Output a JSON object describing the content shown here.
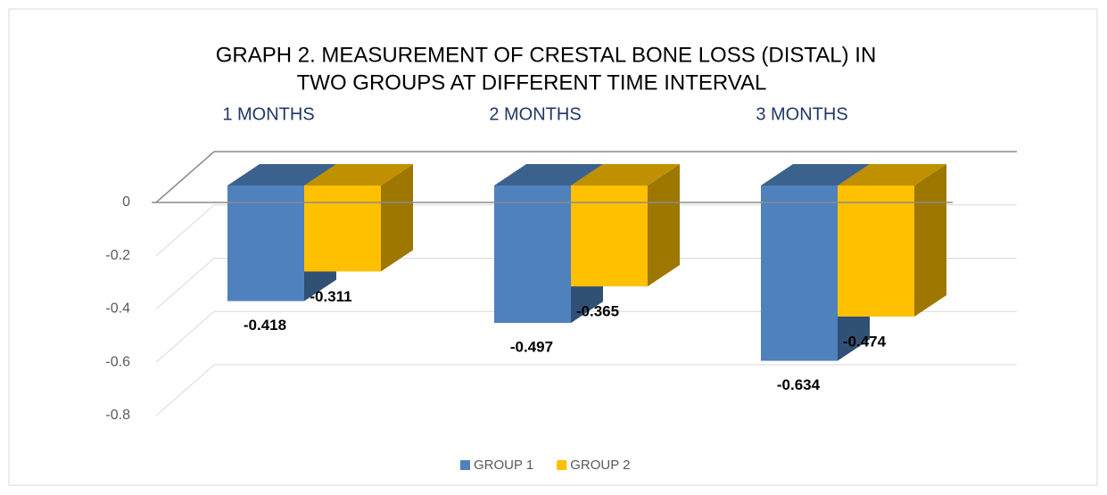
{
  "chart_data": {
    "type": "bar3d",
    "title": [
      "GRAPH 2. MEASUREMENT OF CRESTAL BONE LOSS (DISTAL) IN",
      "TWO GROUPS AT DIFFERENT TIME INTERVAL"
    ],
    "categories": [
      "1 MONTHS",
      "2 MONTHS",
      "3 MONTHS"
    ],
    "series": [
      {
        "name": "GROUP 1",
        "color": "#4f81bd",
        "values": [
          -0.418,
          -0.497,
          -0.634
        ]
      },
      {
        "name": "GROUP 2",
        "color": "#ffc000",
        "values": [
          -0.311,
          -0.365,
          -0.474
        ]
      }
    ],
    "ylim": [
      -0.8,
      0
    ],
    "yticks": [
      0,
      -0.2,
      -0.4,
      -0.6,
      -0.8
    ],
    "grid": true,
    "legend": "bottom"
  }
}
